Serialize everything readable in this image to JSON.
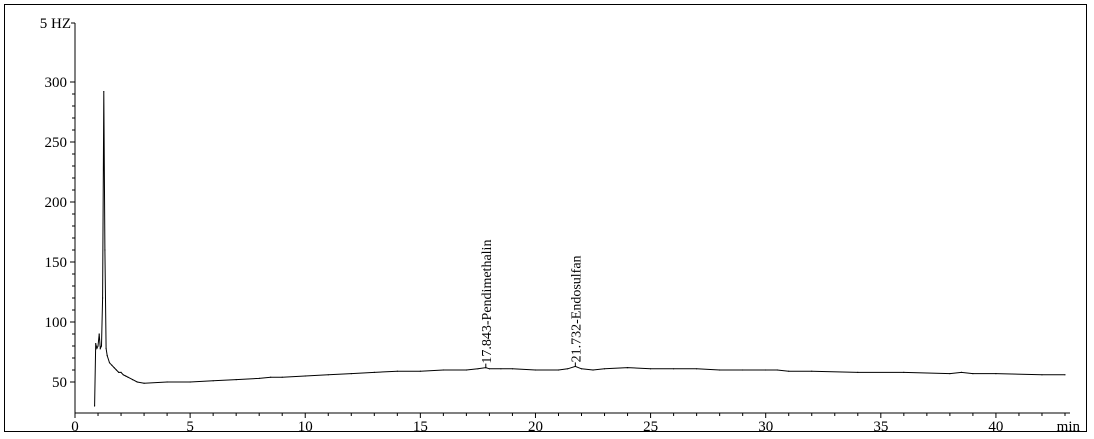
{
  "chart_data": {
    "type": "line",
    "title": "",
    "xlabel": "min",
    "ylabel": "5 HZ",
    "xlim": [
      0,
      43
    ],
    "ylim": [
      28,
      320
    ],
    "x_ticks": [
      0,
      5,
      10,
      15,
      20,
      25,
      30,
      35,
      40
    ],
    "x_tick_labels": [
      "0",
      "5",
      "10",
      "15",
      "20",
      "25",
      "30",
      "35",
      "40"
    ],
    "y_ticks": [
      50,
      100,
      150,
      200,
      250,
      300
    ],
    "y_tick_labels": [
      "50",
      "100",
      "150",
      "200",
      "250",
      "300"
    ],
    "y_top_label": "5 HZ",
    "x_unit_label": "min",
    "grid": false,
    "line_color": "#000000",
    "series": [
      {
        "x": [
          0.85,
          0.9,
          0.95,
          1.0,
          1.05,
          1.1,
          1.15,
          1.2,
          1.25,
          1.3,
          1.35,
          1.4,
          1.5,
          1.6,
          1.7,
          1.8,
          1.9,
          2.0,
          2.1,
          2.2,
          2.3,
          2.5,
          2.7,
          3.0,
          4.0,
          5.0,
          6.0,
          7.0,
          8.0,
          8.5,
          9.0,
          10.0,
          11.0,
          12.0,
          13.0,
          14.0,
          15.0,
          16.0,
          17.0,
          17.5,
          17.843,
          18.0,
          18.5,
          19.0,
          20.0,
          21.0,
          21.4,
          21.732,
          22.0,
          22.5,
          23.0,
          24.0,
          25.0,
          26.0,
          27.0,
          28.0,
          29.0,
          30.0,
          30.5,
          31.0,
          32.0,
          34.0,
          36.0,
          38.0,
          38.5,
          39.0,
          40.0,
          42.0,
          43.0
        ],
        "values": [
          30,
          82,
          78,
          80,
          90,
          78,
          80,
          120,
          292,
          160,
          78,
          72,
          66,
          64,
          62,
          60,
          58,
          58,
          56,
          55,
          54,
          52,
          50,
          49,
          50,
          50,
          51,
          52,
          53,
          54,
          54,
          55,
          56,
          57,
          58,
          59,
          59,
          60,
          60,
          61,
          62,
          61,
          61,
          61,
          60,
          60,
          61,
          63,
          61,
          60,
          61,
          62,
          61,
          61,
          61,
          60,
          60,
          60,
          60,
          59,
          59,
          58,
          58,
          57,
          58,
          57,
          57,
          56,
          56
        ]
      }
    ],
    "annotations": [
      {
        "x": 17.843,
        "y": 62,
        "text": "17.843-Pendimethalin"
      },
      {
        "x": 21.732,
        "y": 63,
        "text": "21.732-Endosulfan"
      }
    ]
  }
}
